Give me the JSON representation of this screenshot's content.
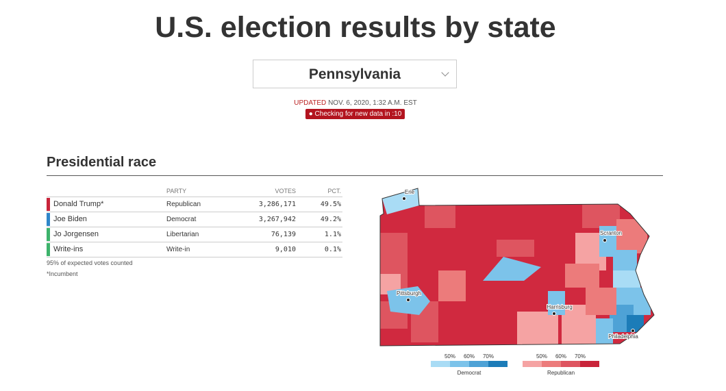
{
  "header": {
    "title": "U.S. election results by state",
    "state_select": "Pennsylvania",
    "updated_label": "UPDATED",
    "updated_time": "NOV. 6, 2020, 1:32 A.M. EST",
    "status": "Checking for new data in :10"
  },
  "race": {
    "title": "Presidential race",
    "columns": [
      "PARTY",
      "VOTES",
      "PCT."
    ],
    "rows": [
      {
        "candidate": "Donald Trump*",
        "party": "Republican",
        "votes": "3,286,171",
        "pct": "49.5%",
        "color": "#c9243a"
      },
      {
        "candidate": "Joe Biden",
        "party": "Democrat",
        "votes": "3,267,942",
        "pct": "49.2%",
        "color": "#2f86c9"
      },
      {
        "candidate": "Jo Jorgensen",
        "party": "Libertarian",
        "votes": "76,139",
        "pct": "1.1%",
        "color": "#3db36b"
      },
      {
        "candidate": "Write-ins",
        "party": "Write-in",
        "votes": "9,010",
        "pct": "0.1%",
        "color": "#3db36b"
      }
    ],
    "notes": [
      "95% of expected votes counted",
      "*Incumbent"
    ]
  },
  "map": {
    "cities": [
      "Erie",
      "Scranton",
      "Pittsburgh",
      "Harrisburg",
      "Philadelphia"
    ],
    "legend": [
      {
        "name": "Democrat",
        "ticks": [
          "50%",
          "60%",
          "70%"
        ],
        "colors": [
          "#a9dcf5",
          "#7cc3ea",
          "#4ea2d6",
          "#1c7cb8"
        ]
      },
      {
        "name": "Republican",
        "ticks": [
          "50%",
          "60%",
          "70%"
        ],
        "colors": [
          "#f5a3a3",
          "#ec7b7b",
          "#de5560",
          "#c9243a"
        ]
      }
    ]
  }
}
